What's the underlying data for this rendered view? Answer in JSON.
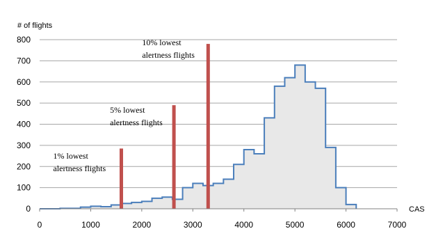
{
  "chart_data": {
    "type": "area",
    "title": "",
    "xlabel": "CAS",
    "ylabel": "# of flights",
    "xlim": [
      0,
      7000
    ],
    "ylim": [
      0,
      800
    ],
    "x_ticks": [
      0,
      1000,
      2000,
      3000,
      4000,
      5000,
      6000,
      7000
    ],
    "y_ticks": [
      0,
      100,
      200,
      300,
      400,
      500,
      600,
      700,
      800
    ],
    "grid": "horizontal",
    "legend": "none",
    "colors": {
      "histogram_line": "#4a7ebb",
      "histogram_fill": "#e8e8e8",
      "threshold": "#c0504d"
    },
    "histogram": {
      "bin_width": 200,
      "bin_start": 0,
      "values": [
        0,
        0,
        2,
        2,
        8,
        12,
        10,
        18,
        25,
        30,
        35,
        50,
        55,
        45,
        100,
        120,
        110,
        120,
        140,
        210,
        280,
        260,
        430,
        580,
        620,
        680,
        600,
        570,
        290,
        100,
        20
      ]
    },
    "thresholds": [
      {
        "x": 1600,
        "height": 285,
        "label": [
          "1% lowest",
          "alertness flights"
        ]
      },
      {
        "x": 2630,
        "height": 490,
        "label": [
          "5% lowest",
          "alertness flights"
        ]
      },
      {
        "x": 3300,
        "height": 780,
        "label": [
          "10% lowest",
          "alertness flights"
        ]
      }
    ]
  }
}
